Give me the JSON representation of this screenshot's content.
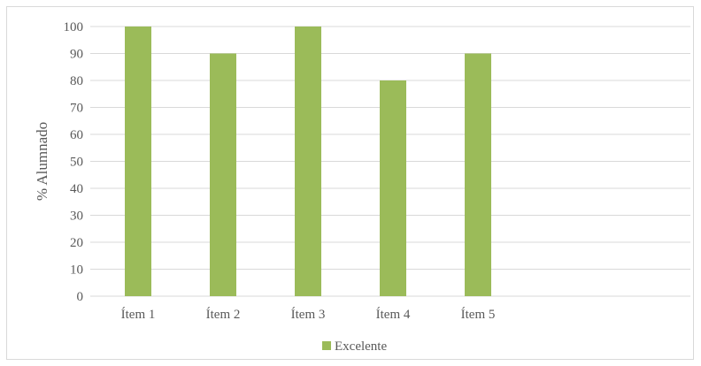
{
  "chart_data": {
    "type": "bar",
    "categories": [
      "Ítem 1",
      "Ítem 2",
      "Ítem 3",
      "Ítem 4",
      "Ítem 5"
    ],
    "series": [
      {
        "name": "Excelente",
        "values": [
          100,
          90,
          100,
          80,
          90
        ],
        "color": "#9bbb59"
      }
    ],
    "title": "",
    "xlabel": "",
    "ylabel": "% Alumnado",
    "ylim": [
      0,
      100
    ],
    "yticks": [
      "0",
      "10",
      "20",
      "30",
      "40",
      "50",
      "60",
      "70",
      "80",
      "90",
      "100"
    ],
    "grid": true,
    "legend_position": "bottom",
    "colors": {
      "grid": "#d9d9d9",
      "text": "#595959",
      "border": "#d9d9d9"
    }
  }
}
